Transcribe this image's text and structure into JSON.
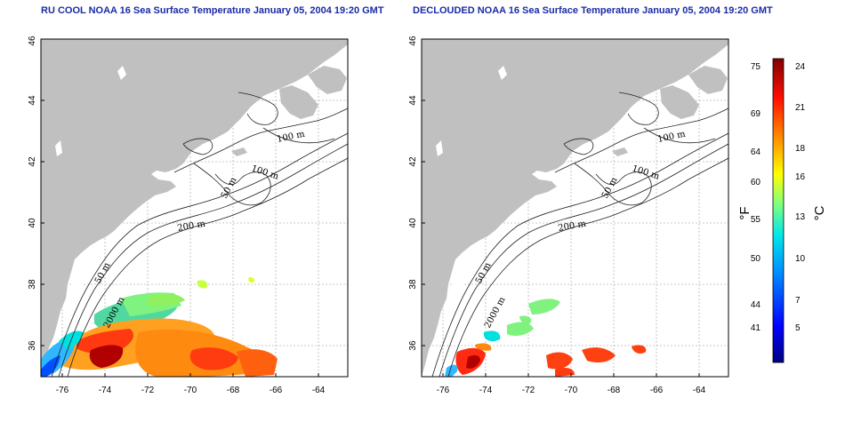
{
  "panels": [
    {
      "id": "left",
      "title": "RU COOL NOAA 16 Sea Surface Temperature January 05, 2004 19:20 GMT"
    },
    {
      "id": "right",
      "title": "DECLOUDED NOAA 16 Sea Surface Temperature January 05, 2004 19:20 GMT"
    }
  ],
  "map": {
    "lon_ticks": [
      "-76",
      "-74",
      "-72",
      "-70",
      "-68",
      "-66",
      "-64"
    ],
    "lat_ticks": [
      "36",
      "38",
      "40",
      "42",
      "44",
      "46"
    ],
    "lon_range": [
      -77.2,
      -62.8
    ],
    "lat_range": [
      35.0,
      46.0
    ],
    "grid": "dotted",
    "land_color": "#c0c0c0",
    "contour_labels": [
      "100 m",
      "100 m",
      "50 m",
      "200 m",
      "50 m",
      "2000 m"
    ]
  },
  "colorbar": {
    "fahrenheit_ticks": [
      "75",
      "69",
      "64",
      "60",
      "55",
      "50",
      "44",
      "41"
    ],
    "celsius_ticks": [
      "24",
      "21",
      "18",
      "16",
      "13",
      "10",
      "7",
      "5"
    ],
    "unit_f": "°F",
    "unit_c": "°C",
    "colors": [
      "#00007f",
      "#0000ff",
      "#007fff",
      "#00ffff",
      "#7fff7f",
      "#ffff00",
      "#ff7f00",
      "#ff0000",
      "#7f0000"
    ]
  }
}
